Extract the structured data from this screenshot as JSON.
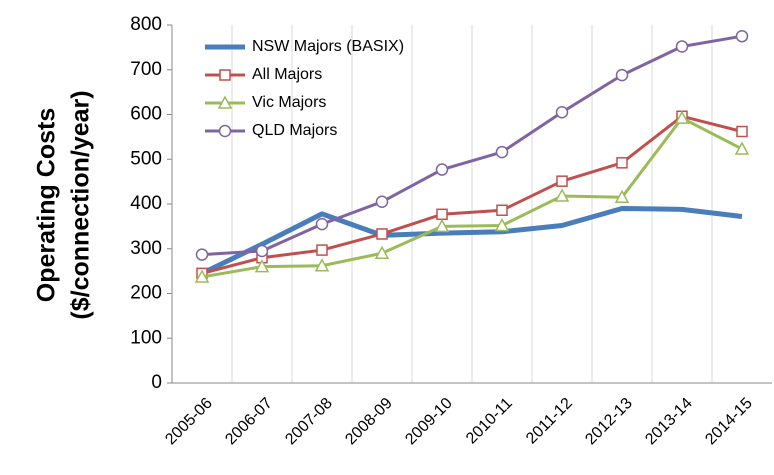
{
  "chart_data": {
    "type": "line",
    "ylabel": [
      "Operating Costs",
      "($/connection/year)"
    ],
    "categories": [
      "2005-06",
      "2006-07",
      "2007-08",
      "2008-09",
      "2009-10",
      "2010-11",
      "2011-12",
      "2012-13",
      "2013-14",
      "2014-15"
    ],
    "series": [
      {
        "name": "NSW Majors (BASIX)",
        "color": "#4a7ebb",
        "values": [
          245,
          310,
          378,
          330,
          335,
          338,
          352,
          390,
          388,
          372
        ]
      },
      {
        "name": "All Majors",
        "color": "#c0504d",
        "marker": "square",
        "values": [
          245,
          280,
          297,
          333,
          377,
          386,
          451,
          492,
          596,
          562
        ]
      },
      {
        "name": "Vic Majors",
        "color": "#9bbb59",
        "marker": "triangle",
        "values": [
          237,
          260,
          262,
          290,
          350,
          352,
          418,
          415,
          592,
          523
        ]
      },
      {
        "name": "QLD Majors",
        "color": "#8064a2",
        "marker": "circle",
        "values": [
          287,
          295,
          355,
          405,
          477,
          516,
          605,
          688,
          752,
          775
        ]
      }
    ],
    "ylim": [
      0,
      800
    ],
    "yticks": [
      0,
      100,
      200,
      300,
      400,
      500,
      600,
      700,
      800
    ],
    "legend": "upper left"
  }
}
